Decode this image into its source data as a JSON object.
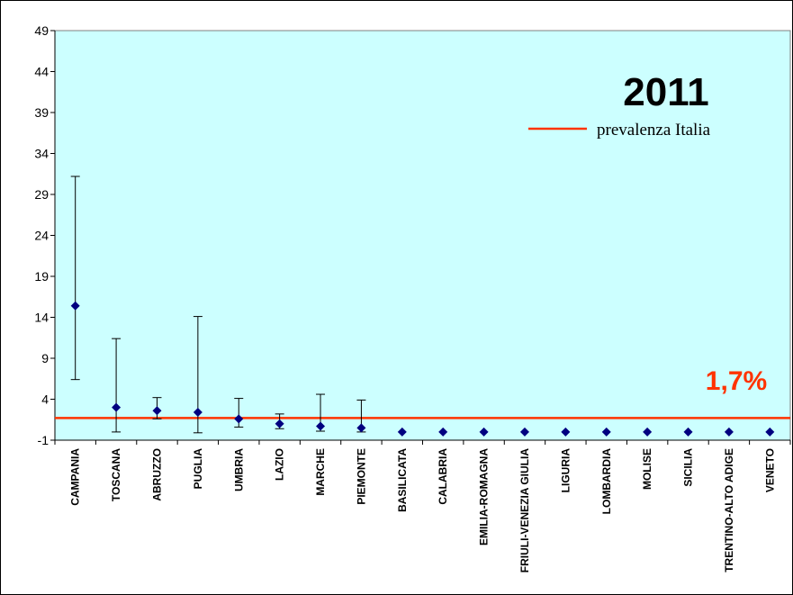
{
  "chart_data": {
    "type": "scatter",
    "title": "2011",
    "xlabel": "",
    "ylabel": "",
    "ylim": [
      -1,
      49
    ],
    "yticks": [
      -1,
      4,
      9,
      14,
      19,
      24,
      29,
      34,
      39,
      44,
      49
    ],
    "grid": false,
    "plot_background": "#ccffff",
    "marker_color": "#000080",
    "error_bars": true,
    "categories": [
      "CAMPANIA",
      "TOSCANA",
      "ABRUZZO",
      "PUGLIA",
      "UMBRIA",
      "LAZIO",
      "MARCHE",
      "PIEMONTE",
      "BASILICATA",
      "CALABRIA",
      "EMILIA-ROMAGNA",
      "FRIULI-VENEZIA GIULIA",
      "LIGURIA",
      "LOMBARDIA",
      "MOLISE",
      "SICILIA",
      "TRENTINO-ALTO ADIGE",
      "VENETO"
    ],
    "values": [
      15.4,
      3.0,
      2.6,
      2.4,
      1.6,
      1.0,
      0.7,
      0.5,
      0.0,
      0.0,
      0.0,
      0.0,
      0.0,
      0.0,
      0.0,
      0.0,
      0.0,
      0.0
    ],
    "lower": [
      6.4,
      0.0,
      1.6,
      -0.1,
      0.6,
      0.4,
      0.1,
      0.0,
      null,
      null,
      null,
      null,
      null,
      null,
      null,
      null,
      null,
      null
    ],
    "upper": [
      31.2,
      11.4,
      4.2,
      14.1,
      4.1,
      2.2,
      4.6,
      3.9,
      null,
      null,
      null,
      null,
      null,
      null,
      null,
      null,
      null,
      null
    ],
    "reference": {
      "name": "prevalenza Italia",
      "value": 1.7,
      "label": "1,7%",
      "color": "#ff3300"
    },
    "legend_position": "top-right"
  }
}
